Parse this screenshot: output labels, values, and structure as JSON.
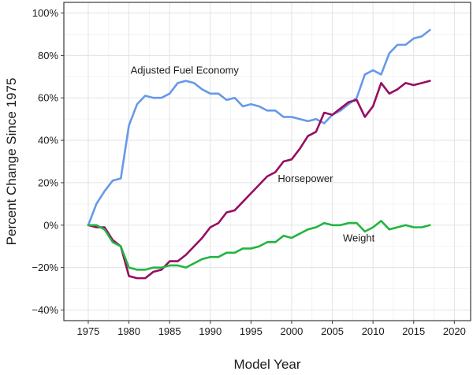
{
  "chart_data": {
    "type": "line",
    "xlabel": "Model Year",
    "ylabel": "Percent Change Since 1975",
    "xlim": [
      1972,
      2022
    ],
    "ylim": [
      -45,
      105
    ],
    "x_ticks": [
      1975,
      1980,
      1985,
      1990,
      1995,
      2000,
      2005,
      2010,
      2015,
      2020
    ],
    "y_ticks": [
      -40,
      -20,
      0,
      20,
      40,
      60,
      80,
      100
    ],
    "y_tick_suffix": "%",
    "grid": true,
    "legend": "none",
    "series": [
      {
        "name": "Adjusted Fuel Economy",
        "color": "#6699e8",
        "x": [
          1975,
          1976,
          1977,
          1978,
          1979,
          1980,
          1981,
          1982,
          1983,
          1984,
          1985,
          1986,
          1987,
          1988,
          1989,
          1990,
          1991,
          1992,
          1993,
          1994,
          1995,
          1996,
          1997,
          1998,
          1999,
          2000,
          2001,
          2002,
          2003,
          2004,
          2005,
          2006,
          2007,
          2008,
          2009,
          2010,
          2011,
          2012,
          2013,
          2014,
          2015,
          2016,
          2017
        ],
        "values": [
          0,
          10,
          16,
          21,
          22,
          47,
          57,
          61,
          60,
          60,
          62,
          67,
          68,
          67,
          64,
          62,
          62,
          59,
          60,
          56,
          57,
          56,
          54,
          54,
          51,
          51,
          50,
          49,
          50,
          48,
          52,
          54,
          57,
          60,
          71,
          73,
          71,
          81,
          85,
          85,
          88,
          89,
          92
        ]
      },
      {
        "name": "Horsepower",
        "color": "#970d62",
        "x": [
          1975,
          1976,
          1977,
          1978,
          1979,
          1980,
          1981,
          1982,
          1983,
          1984,
          1985,
          1986,
          1987,
          1988,
          1989,
          1990,
          1991,
          1992,
          1993,
          1994,
          1995,
          1996,
          1997,
          1998,
          1999,
          2000,
          2001,
          2002,
          2003,
          2004,
          2005,
          2006,
          2007,
          2008,
          2009,
          2010,
          2011,
          2012,
          2013,
          2014,
          2015,
          2016,
          2017
        ],
        "values": [
          0,
          -1,
          -1,
          -7,
          -10,
          -24,
          -25,
          -25,
          -22,
          -21,
          -17,
          -17,
          -14,
          -10,
          -6,
          -1,
          1,
          6,
          7,
          11,
          15,
          19,
          23,
          25,
          30,
          31,
          36,
          42,
          44,
          53,
          52,
          55,
          58,
          59,
          51,
          56,
          67,
          62,
          64,
          67,
          66,
          67,
          68
        ]
      },
      {
        "name": "Weight",
        "color": "#22b540",
        "x": [
          1975,
          1976,
          1977,
          1978,
          1979,
          1980,
          1981,
          1982,
          1983,
          1984,
          1985,
          1986,
          1987,
          1988,
          1989,
          1990,
          1991,
          1992,
          1993,
          1994,
          1995,
          1996,
          1997,
          1998,
          1999,
          2000,
          2001,
          2002,
          2003,
          2004,
          2005,
          2006,
          2007,
          2008,
          2009,
          2010,
          2011,
          2012,
          2013,
          2014,
          2015,
          2016,
          2017
        ],
        "values": [
          0,
          0,
          -2,
          -8,
          -10,
          -20,
          -21,
          -21,
          -20,
          -20,
          -19,
          -19,
          -20,
          -18,
          -16,
          -15,
          -15,
          -13,
          -13,
          -11,
          -11,
          -10,
          -8,
          -8,
          -5,
          -6,
          -4,
          -2,
          -1,
          1,
          0,
          0,
          1,
          1,
          -3,
          -1,
          2,
          -2,
          -1,
          0,
          -1,
          -1,
          0
        ]
      }
    ],
    "annotations": [
      {
        "text": "Adjusted Fuel Economy",
        "series": 0,
        "at_x": 1980.2,
        "at_y": 73
      },
      {
        "text": "Horsepower",
        "series": 1,
        "at_x": 1998.3,
        "at_y": 22
      },
      {
        "text": "Weight",
        "series": 2,
        "at_x": 2006.3,
        "at_y": -6
      }
    ]
  }
}
